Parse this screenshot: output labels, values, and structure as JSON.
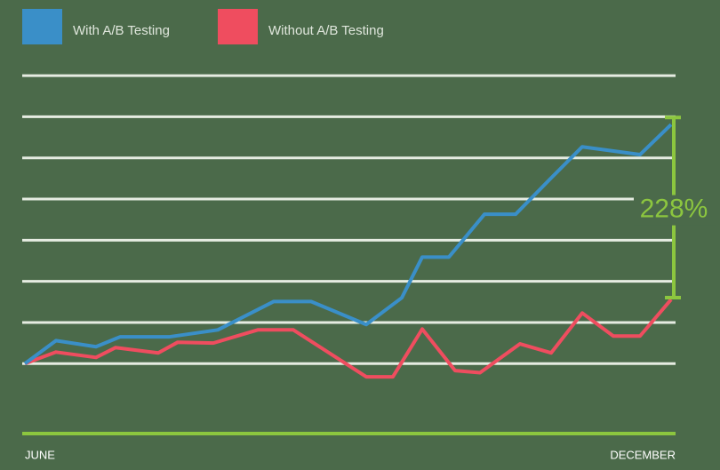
{
  "chart_data": {
    "type": "line",
    "legend": "top-left",
    "grid": true,
    "annotation": "228%",
    "annotation_color": "#8cc63f",
    "xlim": [
      0,
      727
    ],
    "xticks": [
      {
        "value": 0,
        "label": "JUNE"
      },
      {
        "value": 727,
        "label": "DECEMBER"
      }
    ],
    "ylim": [
      -1.7,
      8.6
    ],
    "yticks": [
      0,
      1,
      2,
      3,
      4,
      5,
      6,
      7
    ],
    "series": [
      {
        "name": "With A/B Testing",
        "color": "#3a8fc8",
        "x": [
          0,
          35,
          80,
          107,
          162,
          217,
          280,
          322,
          384,
          424,
          447,
          477,
          517,
          552,
          592,
          627,
          692,
          727
        ],
        "values": [
          0,
          0.56,
          0.41,
          0.65,
          0.65,
          0.82,
          1.51,
          1.51,
          0.95,
          1.6,
          2.59,
          2.59,
          3.63,
          3.63,
          4.51,
          5.27,
          5.08,
          5.81
        ]
      },
      {
        "name": "Without A/B Testing",
        "color": "#ef4d5f",
        "x": [
          0,
          35,
          80,
          102,
          150,
          172,
          212,
          262,
          302,
          384,
          414,
          447,
          484,
          512,
          557,
          592,
          627,
          662,
          692,
          727
        ],
        "values": [
          0,
          0.28,
          0.15,
          0.39,
          0.26,
          0.52,
          0.5,
          0.82,
          0.82,
          -0.32,
          -0.32,
          0.84,
          -0.17,
          -0.22,
          0.48,
          0.26,
          1.23,
          0.67,
          0.67,
          1.56
        ]
      }
    ]
  }
}
